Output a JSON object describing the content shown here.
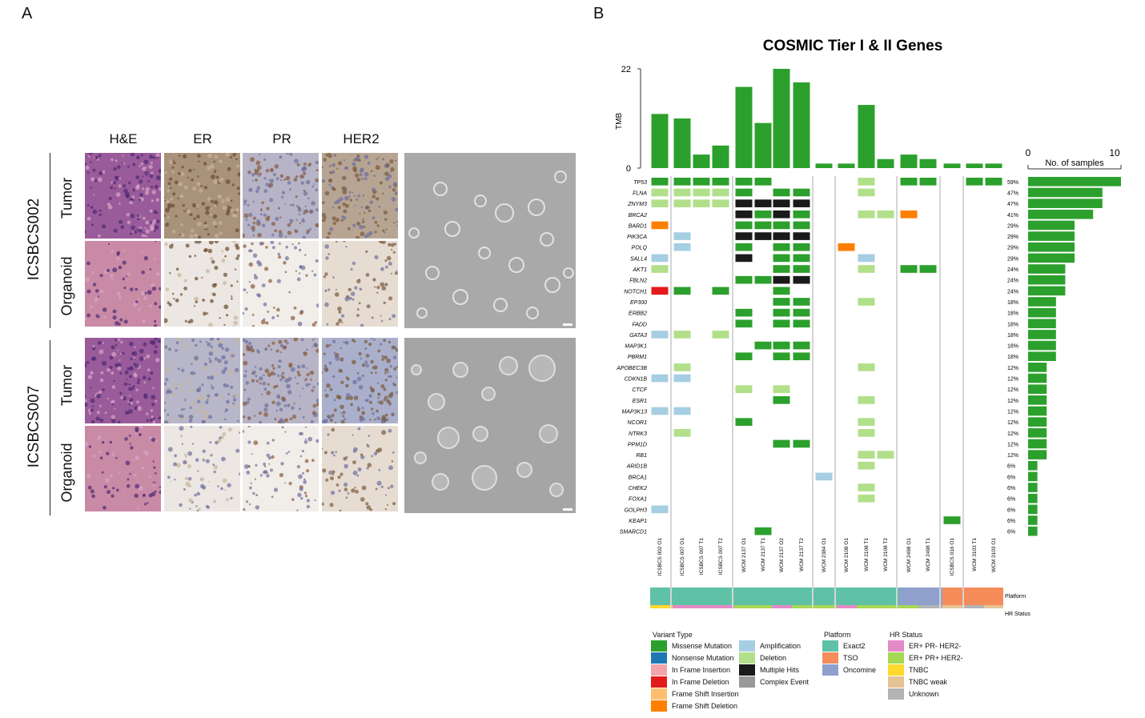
{
  "panel_a": {
    "letter": "A",
    "columns": [
      "H&E",
      "ER",
      "PR",
      "HER2"
    ],
    "samples": [
      {
        "name": "ICSBCS002",
        "rows": [
          "Tumor",
          "Organoid"
        ]
      },
      {
        "name": "ICSBCS007",
        "rows": [
          "Tumor",
          "Organoid"
        ]
      }
    ]
  },
  "panel_b": {
    "letter": "B",
    "title": "COSMIC Tier I & II Genes",
    "tmb_label": "TMB",
    "tmb_ticks": [
      "22",
      "0"
    ],
    "bar_axis_ticks": [
      "0",
      "10"
    ],
    "bar_axis_label": "No. of samples",
    "track_labels": [
      "Platform",
      "HR Status"
    ],
    "samples": [
      "ICSBCS 002 O1",
      "ICSBCS 007 O1",
      "ICSBCS 007 T1",
      "ICSBCS 007 T2",
      "WCM 2137 O1",
      "WCM 2137 T1",
      "WCM 2137 O2",
      "WCM 2137 T2",
      "WCM 2384 O1",
      "WCM 2108 O1",
      "WCM 2108 T1",
      "WCM 2108 T2",
      "WCM 2498 O1",
      "WCM 2498 T1",
      "ICSBCS 016 O1",
      "WCM 3103 T1",
      "WCM 3103 O1"
    ],
    "genes": [
      "TP53",
      "FLNA",
      "ZNYM3",
      "BRCA2",
      "BARD1",
      "PIK3CA",
      "POLQ",
      "SALL4",
      "AKT1",
      "FBLN2",
      "NOTCH1",
      "EP300",
      "ERBB2",
      "FADD",
      "GATA3",
      "MAP3K1",
      "PBRM1",
      "APOBEC3B",
      "CDKN1B",
      "CTCF",
      "ESR1",
      "MAP3K13",
      "NCOR1",
      "NTRK3",
      "PPM1D",
      "RB1",
      "ARID1B",
      "BRCA1",
      "CHEK2",
      "FOXA1",
      "GOLPH3",
      "KEAP1",
      "SMARCD1"
    ],
    "gene_pct": [
      "59%",
      "47%",
      "47%",
      "41%",
      "29%",
      "29%",
      "29%",
      "29%",
      "24%",
      "24%",
      "24%",
      "18%",
      "18%",
      "18%",
      "18%",
      "18%",
      "18%",
      "12%",
      "12%",
      "12%",
      "12%",
      "12%",
      "12%",
      "12%",
      "12%",
      "12%",
      "6%",
      "6%",
      "6%",
      "6%",
      "6%",
      "6%",
      "6%"
    ],
    "legend": {
      "variant_type": {
        "title": "Variant Type",
        "items": [
          {
            "label": "Missense Mutation",
            "color": "#2ca02c"
          },
          {
            "label": "Nonsense Mutation",
            "color": "#1f78b4"
          },
          {
            "label": "In Frame Insertion",
            "color": "#f4a3a8"
          },
          {
            "label": "In Frame Deletion",
            "color": "#e31a1c"
          },
          {
            "label": "Frame Shift Insertion",
            "color": "#fdbf6f"
          },
          {
            "label": "Frame Shift Deletion",
            "color": "#ff7f00"
          },
          {
            "label": "Amplification",
            "color": "#a6cee3"
          },
          {
            "label": "Deletion",
            "color": "#b2df8a"
          },
          {
            "label": "Multiple Hits",
            "color": "#1a1a1a"
          },
          {
            "label": "Complex Event",
            "color": "#999999"
          }
        ]
      },
      "platform": {
        "title": "Platform",
        "items": [
          {
            "label": "Exact2",
            "color": "#5fc1a5"
          },
          {
            "label": "TSO",
            "color": "#f58c5a"
          },
          {
            "label": "Oncomine",
            "color": "#8fa0cc"
          }
        ]
      },
      "hr_status": {
        "title": "HR Status",
        "items": [
          {
            "label": "ER+ PR- HER2-",
            "color": "#e58ac8"
          },
          {
            "label": "ER+ PR+ HER2-",
            "color": "#a6d854"
          },
          {
            "label": "TNBC",
            "color": "#ffd92f"
          },
          {
            "label": "TNBC weak",
            "color": "#e5c494"
          },
          {
            "label": "Unknown",
            "color": "#b3b3b3"
          }
        ]
      }
    }
  },
  "chart_data": {
    "type": "bar",
    "title": "COSMIC Tier I & II Genes",
    "ylabel": "TMB",
    "ylim": [
      0,
      22
    ],
    "categories": [
      "ICSBCS 002 O1",
      "ICSBCS 007 O1",
      "ICSBCS 007 T1",
      "ICSBCS 007 T2",
      "WCM 2137 O1",
      "WCM 2137 T1",
      "WCM 2137 O2",
      "WCM 2137 T2",
      "WCM 2384 O1",
      "WCM 2108 O1",
      "WCM 2108 T1",
      "WCM 2108 T2",
      "WCM 2498 O1",
      "WCM 2498 T1",
      "ICSBCS 016 O1",
      "WCM 3103 T1",
      "WCM 3103 O1"
    ],
    "values": [
      12,
      11,
      3,
      5,
      18,
      10,
      22,
      19,
      1,
      1,
      14,
      2,
      3,
      2,
      1,
      1,
      1
    ],
    "gene_sample_counts": {
      "categories": [
        "TP53",
        "FLNA",
        "ZNYM3",
        "BRCA2",
        "BARD1",
        "PIK3CA",
        "POLQ",
        "SALL4",
        "AKT1",
        "FBLN2",
        "NOTCH1",
        "EP300",
        "ERBB2",
        "FADD",
        "GATA3",
        "MAP3K1",
        "PBRM1",
        "APOBEC3B",
        "CDKN1B",
        "CTCF",
        "ESR1",
        "MAP3K13",
        "NCOR1",
        "NTRK3",
        "PPM1D",
        "RB1",
        "ARID1B",
        "BRCA1",
        "CHEK2",
        "FOXA1",
        "GOLPH3",
        "KEAP1",
        "SMARCD1"
      ],
      "values": [
        10,
        8,
        8,
        7,
        5,
        5,
        5,
        5,
        4,
        4,
        4,
        3,
        3,
        3,
        3,
        3,
        3,
        2,
        2,
        2,
        2,
        2,
        2,
        2,
        2,
        2,
        1,
        1,
        1,
        1,
        1,
        1,
        1
      ],
      "xlim": [
        0,
        10
      ]
    }
  }
}
